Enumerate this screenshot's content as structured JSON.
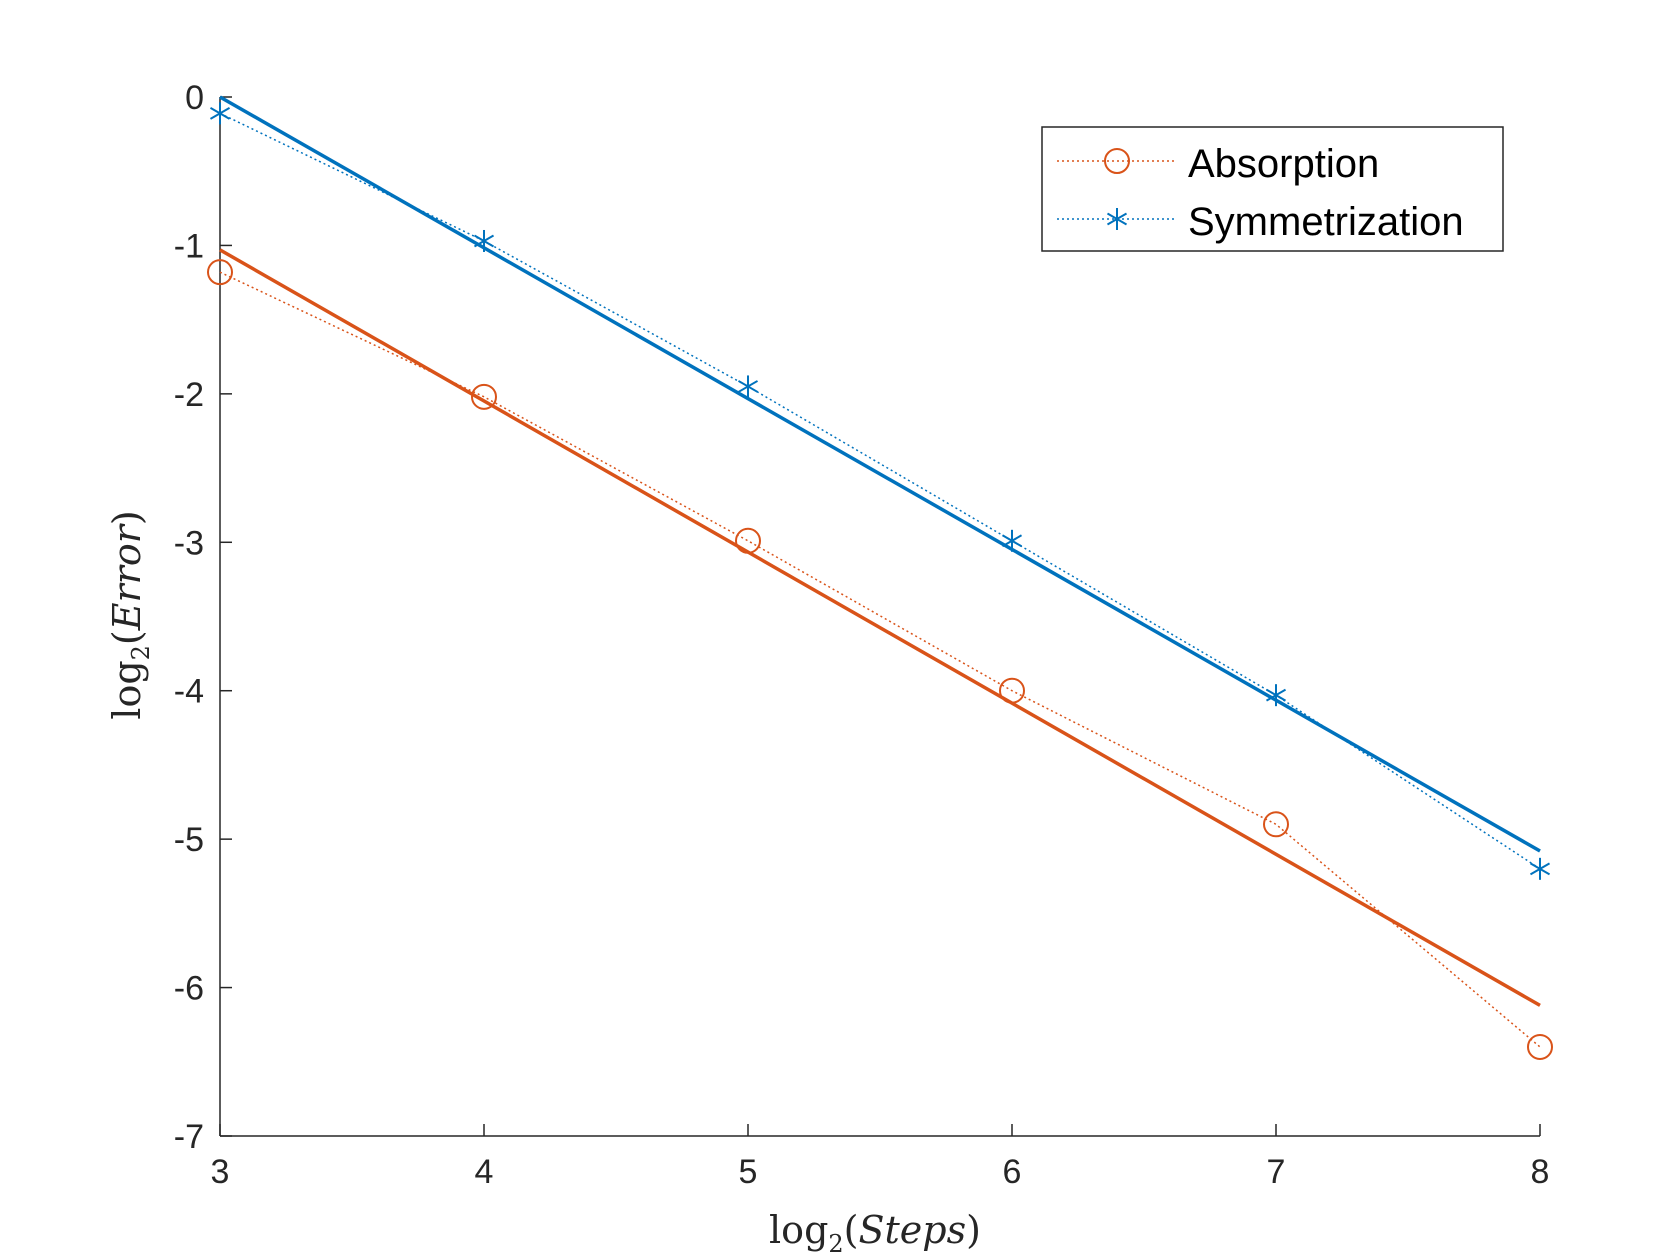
{
  "chart_data": {
    "type": "line",
    "title": "",
    "xlabel": {
      "prefix": "log",
      "subscript": "2",
      "variable": "Steps"
    },
    "ylabel": {
      "prefix": "log",
      "subscript": "2",
      "variable": "Error"
    },
    "xlim": [
      3,
      8
    ],
    "ylim": [
      -7,
      0
    ],
    "xticks": [
      "3",
      "4",
      "5",
      "6",
      "7",
      "8"
    ],
    "yticks": [
      "-7",
      "-6",
      "-5",
      "-4",
      "-3",
      "-2",
      "-1",
      "0"
    ],
    "grid": false,
    "legend_position": "top-right",
    "x": [
      3,
      4,
      5,
      6,
      7,
      8
    ],
    "series": [
      {
        "name": "Absorption",
        "color": "#D95319",
        "marker": "circle",
        "line_style": "dotted",
        "values": [
          -1.18,
          -2.02,
          -2.99,
          -4.0,
          -4.9,
          -6.4
        ],
        "fit": {
          "x": [
            3,
            8
          ],
          "y": [
            -1.03,
            -6.12
          ]
        }
      },
      {
        "name": "Symmetrization",
        "color": "#0072BD",
        "marker": "asterisk",
        "line_style": "dotted",
        "values": [
          -0.11,
          -0.97,
          -1.95,
          -2.99,
          -4.03,
          -5.2
        ],
        "fit": {
          "x": [
            3,
            8
          ],
          "y": [
            0.0,
            -5.08
          ]
        }
      }
    ]
  }
}
